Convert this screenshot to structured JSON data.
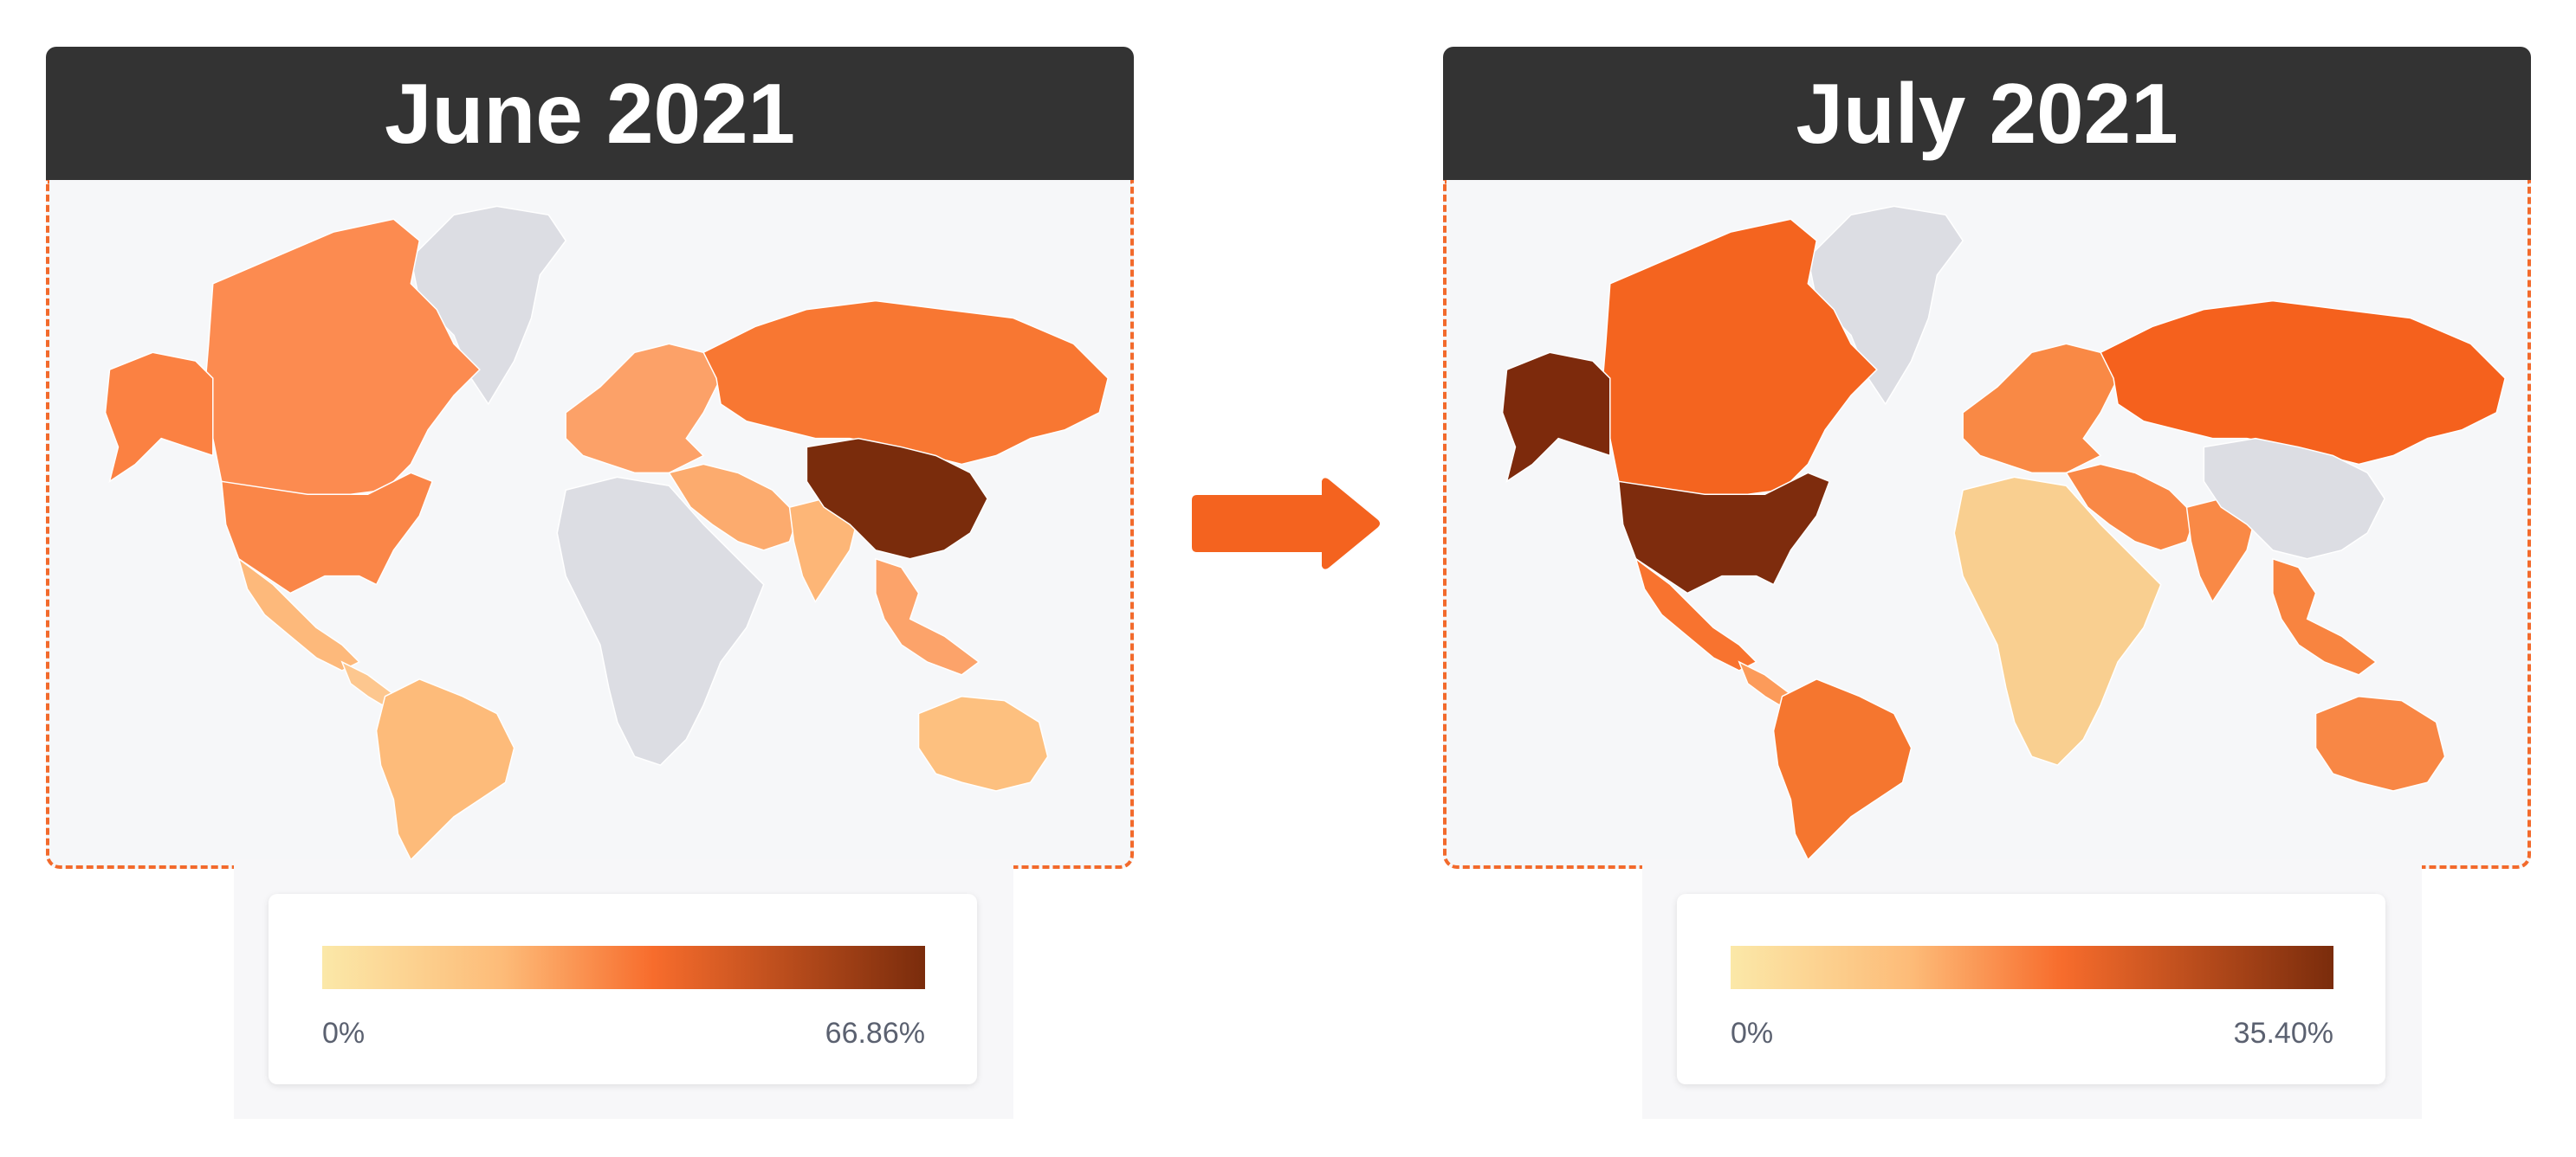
{
  "colors": {
    "scale": [
      "#fbe8a8",
      "#fdbb78",
      "#f76c2c",
      "#7a2c0c"
    ],
    "no_data": "#dcdde3",
    "background": "#f6f7f9",
    "border": "#f26a2c",
    "arrow": "#f4631f"
  },
  "panels": [
    {
      "title": "June 2021",
      "legend": {
        "min": "0%",
        "max": "66.86%"
      },
      "regions": {
        "north_america": "#fc8b50",
        "alaska": "#fb8142",
        "usa": "#fa8648",
        "mexico": "#fdb97b",
        "central_america": "#fdc78f",
        "south_america": "#fdbb7a",
        "europe": "#fca168",
        "russia": "#f87732",
        "middle_east": "#fcab6e",
        "africa": "#dcdde3",
        "india": "#fdb677",
        "china": "#7a2c0c",
        "se_asia": "#fca36a",
        "australia": "#fdc07f"
      }
    },
    {
      "title": "July 2021",
      "legend": {
        "min": "0%",
        "max": "35.40%"
      },
      "regions": {
        "north_america": "#f4641f",
        "alaska": "#7d2a0c",
        "usa": "#7e2c0d",
        "mexico": "#f8732f",
        "central_america": "#fc9b5a",
        "south_america": "#f5762f",
        "europe": "#f98945",
        "russia": "#f5611d",
        "middle_east": "#f98846",
        "africa": "#f9cf90",
        "india": "#f98946",
        "china": "#dcdde3",
        "se_asia": "#f88440",
        "australia": "#f88745"
      }
    }
  ]
}
